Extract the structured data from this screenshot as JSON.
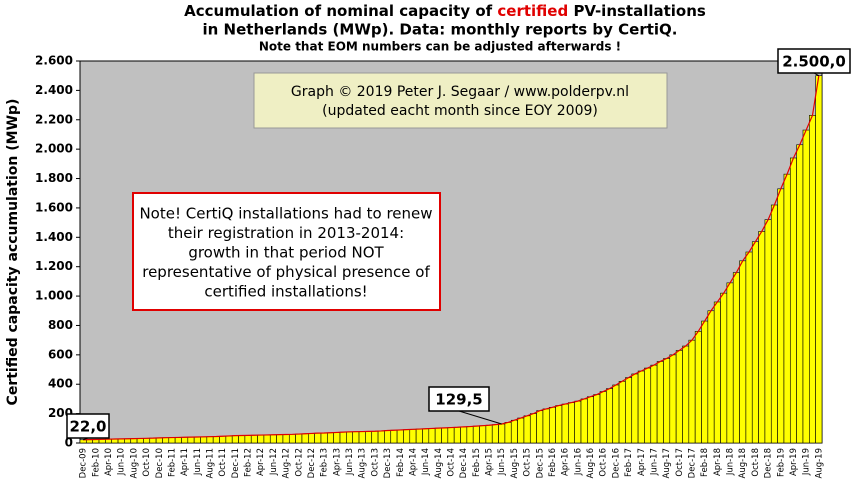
{
  "chart_data": {
    "type": "bar",
    "title": [
      [
        "Accumulation  of nominal  capacity of ",
        "certified",
        " PV-installations"
      ],
      "in Netherlands (MWp). Data: monthly  reports by CertiQ."
    ],
    "subtitle": "Note that EOM numbers can be adjusted afterwards  !",
    "y_label": "Certified capacity accumulation (MWp)",
    "annotations": {
      "credit": [
        "Graph © 2019 Peter J. Segaar / www.polderpv.nl",
        "(updated eacht month since EOY 2009)"
      ],
      "note": [
        "Note! CertiQ installations had to renew",
        "their registration in 2013-2014:",
        "growth in that period NOT",
        "representative of physical presence of",
        "certified installations!"
      ]
    },
    "color": "#ffff00",
    "trend_color": "#e00000",
    "ylim": [
      0,
      2600
    ],
    "yticks": [
      0,
      200,
      400,
      600,
      800,
      {
        "value": 1000,
        "label": "1.000"
      },
      {
        "value": 1200,
        "label": "1.200"
      },
      {
        "value": 1400,
        "label": "1.400"
      },
      {
        "value": 1600,
        "label": "1.600"
      },
      {
        "value": 1800,
        "label": "1.800"
      },
      {
        "value": 2000,
        "label": "2.000"
      },
      {
        "value": 2200,
        "label": "2.200"
      },
      {
        "value": 2400,
        "label": "2.400"
      },
      {
        "value": 2600,
        "label": "2.600"
      }
    ],
    "categories": [
      "Dec-09",
      null,
      "Feb-10",
      null,
      "Apr-10",
      null,
      "Jun-10",
      null,
      "Aug-10",
      null,
      "Oct-10",
      null,
      "Dec-10",
      null,
      "Feb-11",
      null,
      "Apr-11",
      null,
      "Jun-11",
      null,
      "Aug-11",
      null,
      "Oct-11",
      null,
      "Dec-11",
      null,
      "Feb-12",
      null,
      "Apr-12",
      null,
      "Jun-12",
      null,
      "Aug-12",
      null,
      "Oct-12",
      null,
      "Dec-12",
      null,
      "Feb-13",
      null,
      "Apr-13",
      null,
      "Jun-13",
      null,
      "Aug-13",
      null,
      "Oct-13",
      null,
      "Dec-13",
      null,
      "Feb-14",
      null,
      "Apr-14",
      null,
      "Jun-14",
      null,
      "Aug-14",
      null,
      "Oct-14",
      null,
      "Dec-14",
      null,
      "Feb-15",
      null,
      "Apr-15",
      null,
      "Jun-15",
      null,
      "Aug-15",
      null,
      "Oct-15",
      null,
      "Dec-15",
      null,
      "Feb-16",
      null,
      "Apr-16",
      null,
      "Jun-16",
      null,
      "Aug-16",
      null,
      "Oct-16",
      null,
      "Dec-16",
      null,
      "Feb-17",
      null,
      "Apr-17",
      null,
      "Jun-17",
      null,
      "Aug-17",
      null,
      "Oct-17",
      null,
      "Dec-17",
      null,
      "Feb-18",
      null,
      "Apr-18",
      null,
      "Jun-18",
      null,
      "Aug-18",
      null,
      "Oct-18",
      null,
      "Dec-18",
      null,
      "Feb-19",
      null,
      "Apr-19",
      null,
      "Jun-19",
      null,
      "Aug-19"
    ],
    "values": [
      22,
      23,
      24,
      25,
      26,
      27,
      28,
      29,
      30,
      31,
      32,
      33,
      35,
      36,
      37,
      38,
      39,
      40,
      41,
      42,
      43,
      44,
      46,
      48,
      50,
      51,
      52,
      53,
      54,
      55,
      56,
      57,
      58,
      59,
      61,
      63,
      65,
      67,
      68,
      70,
      72,
      74,
      76,
      77,
      78,
      79,
      80,
      82,
      85,
      87,
      89,
      91,
      93,
      95,
      97,
      99,
      101,
      103,
      105,
      107,
      110,
      112,
      115,
      118,
      121,
      125,
      129.5,
      140,
      155,
      170,
      185,
      200,
      220,
      232,
      243,
      255,
      265,
      275,
      285,
      300,
      315,
      330,
      350,
      370,
      395,
      420,
      445,
      470,
      490,
      510,
      530,
      555,
      575,
      600,
      630,
      660,
      700,
      760,
      830,
      900,
      960,
      1020,
      1090,
      1160,
      1240,
      1300,
      1370,
      1440,
      1520,
      1620,
      1730,
      1830,
      1940,
      2030,
      2130,
      2230,
      2500
    ],
    "value_labels": [
      "22,0",
      null,
      null,
      null,
      null,
      null,
      null,
      null,
      null,
      null,
      null,
      null,
      null,
      null,
      null,
      null,
      null,
      null,
      null,
      null,
      null,
      null,
      null,
      null,
      null,
      null,
      null,
      null,
      null,
      null,
      null,
      null,
      null,
      null,
      null,
      null,
      null,
      null,
      null,
      null,
      null,
      null,
      null,
      null,
      null,
      null,
      null,
      null,
      null,
      null,
      null,
      null,
      null,
      null,
      null,
      null,
      null,
      null,
      null,
      null,
      null,
      null,
      null,
      null,
      null,
      null,
      "129,5",
      null,
      null,
      null,
      null,
      null,
      null,
      null,
      null,
      null,
      null,
      null,
      null,
      null,
      null,
      null,
      null,
      null,
      null,
      null,
      null,
      null,
      null,
      null,
      null,
      null,
      null,
      null,
      null,
      null,
      null,
      null,
      null,
      null,
      null,
      null,
      null,
      null,
      null,
      null,
      null,
      null,
      null,
      null,
      null,
      null,
      null,
      null,
      null,
      null,
      "2.500,0"
    ]
  }
}
